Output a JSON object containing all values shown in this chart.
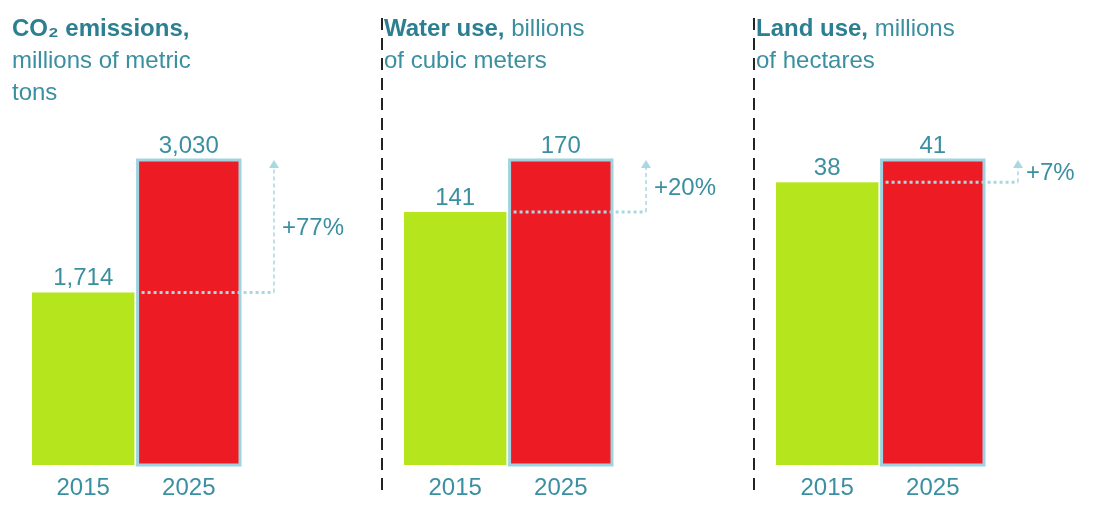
{
  "chart_data": [
    {
      "type": "bar",
      "title": "CO₂ emissions,",
      "subtitle": "millions of metric tons",
      "categories": [
        "2015",
        "2025"
      ],
      "values": [
        1714,
        3030
      ],
      "colors": [
        "#b5e61d",
        "#ed1c24"
      ],
      "value_labels": [
        "1,714",
        "3,030"
      ],
      "tick_labels": "x",
      "annotations": [
        "+77%"
      ],
      "ref_lines": [
        {
          "axis": "y",
          "value": 1714,
          "color": "#a8d8e0",
          "line_style": "dotted"
        }
      ]
    },
    {
      "type": "bar",
      "title": "Water use,",
      "subtitle": "billions of cubic meters",
      "categories": [
        "2015",
        "2025"
      ],
      "values": [
        141,
        170
      ],
      "colors": [
        "#b5e61d",
        "#ed1c24"
      ],
      "data_labels": true,
      "tick_labels": "x",
      "annotations": [
        "+20%"
      ],
      "ref_lines": [
        {
          "axis": "y",
          "value": 141,
          "color": "#a8d8e0",
          "line_style": "dotted"
        }
      ]
    },
    {
      "type": "bar",
      "title": "Land use,",
      "subtitle": "millions of hectares",
      "categories": [
        "2015",
        "2025"
      ],
      "values": [
        38,
        41
      ],
      "colors": [
        "#b5e61d",
        "#ed1c24"
      ],
      "data_labels": true,
      "tick_labels": "x",
      "annotations": [
        "+7%"
      ],
      "ref_lines": [
        {
          "axis": "y",
          "value": 38,
          "color": "#a8d8e0",
          "line_style": "dotted"
        }
      ]
    }
  ]
}
